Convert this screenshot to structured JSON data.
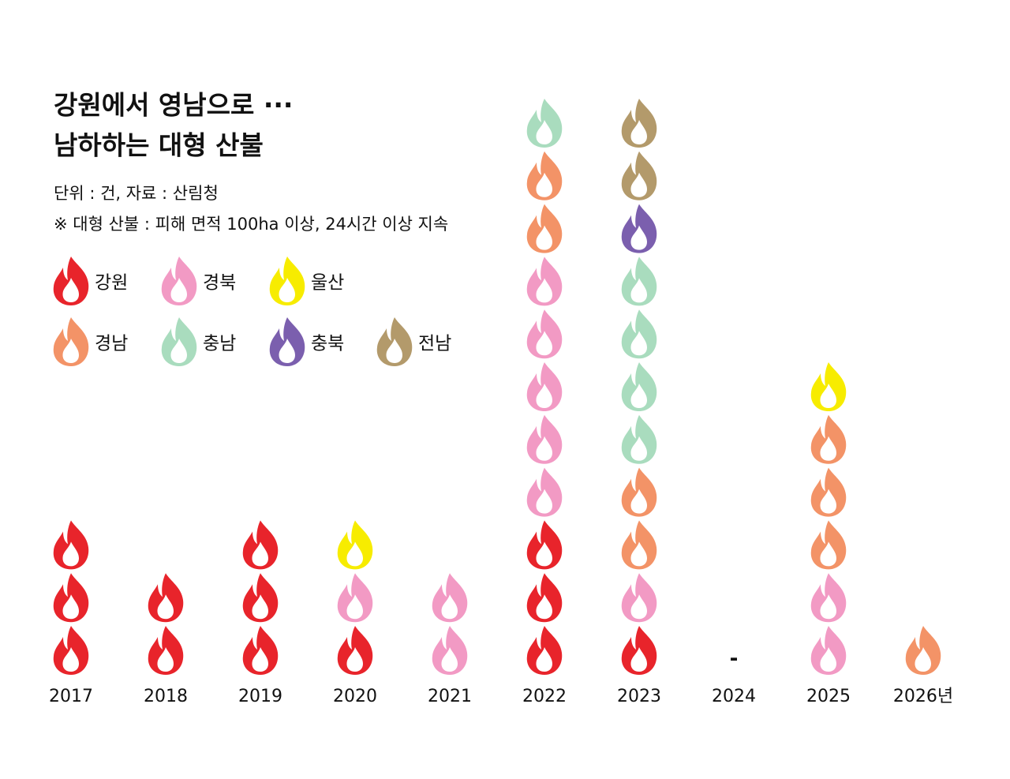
{
  "chart_data": {
    "type": "pictogram",
    "title": [
      "강원에서 영남으로 ···",
      "남하하는 대형 산불"
    ],
    "subtitle": "단위 : 건,  자료 : 산림청",
    "note": "※ 대형 산불 : 피해 면적 100ha 이상, 24시간 이상 지속",
    "categories": [
      "2017",
      "2018",
      "2019",
      "2020",
      "2021",
      "2022",
      "2023",
      "2024",
      "2025",
      "2026년"
    ],
    "empty_label": "-",
    "series": [
      {
        "name": "강원",
        "color": "#e8242b",
        "values": [
          3,
          2,
          3,
          1,
          0,
          3,
          1,
          0,
          0,
          0
        ]
      },
      {
        "name": "경북",
        "color": "#f29ac4",
        "values": [
          0,
          0,
          0,
          1,
          2,
          5,
          1,
          0,
          2,
          0
        ]
      },
      {
        "name": "경남",
        "color": "#f39367",
        "values": [
          0,
          0,
          0,
          0,
          0,
          2,
          2,
          0,
          3,
          1
        ]
      },
      {
        "name": "충남",
        "color": "#a9dcbe",
        "values": [
          0,
          0,
          0,
          0,
          0,
          1,
          4,
          0,
          0,
          0
        ]
      },
      {
        "name": "충북",
        "color": "#7b5fae",
        "values": [
          0,
          0,
          0,
          0,
          0,
          0,
          1,
          0,
          0,
          0
        ]
      },
      {
        "name": "전남",
        "color": "#b39a6b",
        "values": [
          0,
          0,
          0,
          0,
          0,
          0,
          2,
          0,
          0,
          0
        ]
      },
      {
        "name": "울산",
        "color": "#f7ec00",
        "values": [
          0,
          0,
          0,
          1,
          0,
          0,
          0,
          0,
          1,
          0
        ]
      }
    ]
  }
}
